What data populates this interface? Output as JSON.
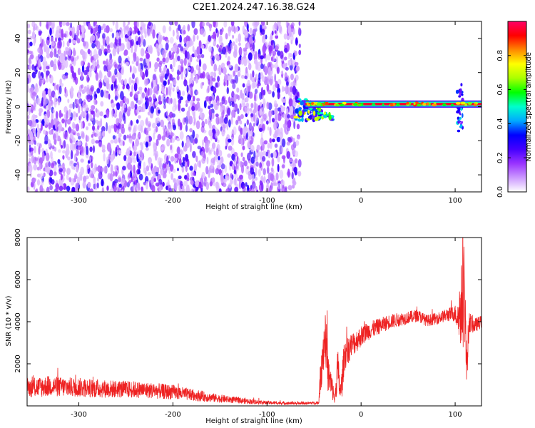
{
  "figure": {
    "title": "C2E1.2024.247.16.38.G24"
  },
  "chart_data": [
    {
      "type": "heatmap",
      "title": "C2E1.2024.247.16.38.G24",
      "xlabel": "Height of straight line (km)",
      "ylabel": "Frequency (Hz)",
      "xlim": [
        -355,
        128
      ],
      "ylim": [
        -50,
        50
      ],
      "xticks": [
        -300,
        -200,
        -100,
        0,
        100
      ],
      "yticks": [
        -40,
        -20,
        0,
        20,
        40
      ],
      "colorbar": {
        "label": "Normalized spectral amplitude",
        "range": [
          0.0,
          1.0
        ],
        "ticks": [
          0.0,
          0.2,
          0.4,
          0.6,
          0.8
        ],
        "tick_labels": [
          "0.0",
          "0.2",
          "0.4",
          "0.6",
          "0.8"
        ],
        "colormap": [
          "#ffffff",
          "#cc99ff",
          "#9933ff",
          "#4400ff",
          "#0000ff",
          "#00aaff",
          "#00ffcc",
          "#00ff00",
          "#aaff00",
          "#ffff00",
          "#ff8800",
          "#ff0000",
          "#ff0066"
        ]
      },
      "noise_region": {
        "x_range": [
          -355,
          -65
        ],
        "y_range": [
          -50,
          50
        ],
        "amplitude": [
          0.05,
          0.3
        ]
      },
      "signal_line": {
        "x_range": [
          -65,
          128
        ],
        "frequency_hz": 1.5,
        "amplitude": 0.95
      },
      "signal_onset": {
        "x": -62,
        "frequency_hz": [
          -8,
          5
        ]
      },
      "feature_at_105": {
        "x": 105,
        "frequency_hz": [
          -15,
          15
        ]
      },
      "grid": false,
      "legend": "right colorbar"
    },
    {
      "type": "line",
      "xlabel": "Height of straight line (km)",
      "ylabel": "SNR (10 * v/v)",
      "xlim": [
        -355,
        128
      ],
      "ylim": [
        0,
        8000
      ],
      "xticks": [
        -300,
        -200,
        -100,
        0,
        100
      ],
      "yticks": [
        2000,
        4000,
        6000,
        8000
      ],
      "color": "#ee2222",
      "grid": false,
      "series": [
        {
          "x": [
            -355,
            -340,
            -330,
            -320,
            -300,
            -280,
            -260,
            -240,
            -220,
            -200,
            -180,
            -160,
            -140,
            -120,
            -100,
            -80,
            -60,
            -45,
            -42,
            -38,
            -35,
            -30,
            -28,
            -25,
            -22,
            -20,
            -18,
            -15,
            -10,
            -5,
            0,
            5,
            10,
            20,
            30,
            40,
            50,
            60,
            70,
            80,
            90,
            100,
            103,
            105,
            108,
            110,
            112,
            115,
            120,
            128
          ],
          "values": [
            850,
            900,
            950,
            900,
            880,
            820,
            800,
            780,
            720,
            650,
            520,
            400,
            300,
            220,
            150,
            130,
            120,
            150,
            2200,
            3400,
            1500,
            700,
            300,
            1800,
            600,
            1200,
            2400,
            2600,
            2900,
            3100,
            3300,
            3500,
            3600,
            3800,
            4000,
            4100,
            4200,
            4300,
            4050,
            4150,
            4300,
            4400,
            4200,
            4500,
            5000,
            5500,
            1800,
            4000,
            3800,
            4000
          ],
          "spread": [
            450,
            500,
            500,
            480,
            460,
            440,
            420,
            400,
            380,
            350,
            280,
            220,
            170,
            130,
            90,
            70,
            60,
            80,
            1300,
            1200,
            1000,
            500,
            250,
            1100,
            500,
            700,
            800,
            700,
            600,
            550,
            500,
            450,
            420,
            380,
            350,
            330,
            300,
            300,
            280,
            280,
            300,
            400,
            900,
            1600,
            2400,
            2200,
            1200,
            500,
            350,
            300
          ]
        }
      ]
    }
  ]
}
